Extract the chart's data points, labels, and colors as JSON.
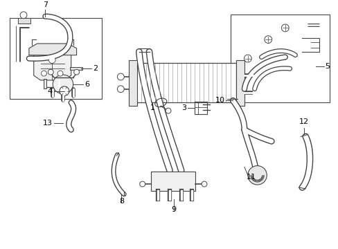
{
  "bg_color": "#ffffff",
  "lc": "#444444",
  "fig_width": 4.89,
  "fig_height": 3.6,
  "dpi": 100,
  "label_fs": 8.0
}
